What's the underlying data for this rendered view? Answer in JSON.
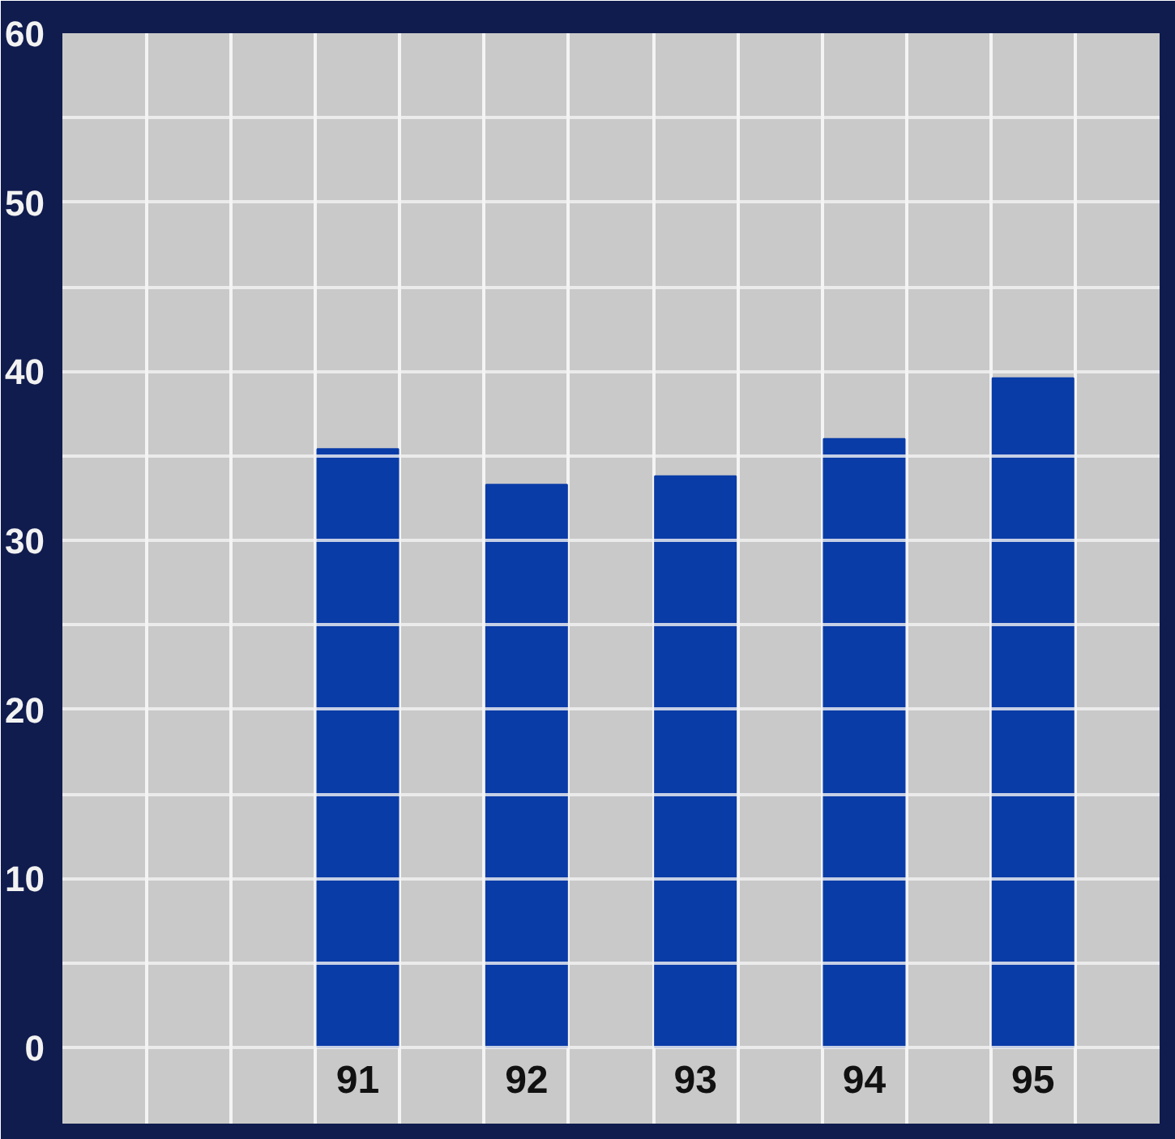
{
  "chart_data": {
    "type": "bar",
    "categories": [
      "91",
      "92",
      "93",
      "94",
      "95"
    ],
    "values": [
      35.4,
      33.3,
      33.8,
      36.0,
      39.6
    ],
    "color": "#0a3ca8",
    "ylim": [
      -4.5,
      60
    ],
    "yticks": [
      0,
      {
        "value": 5,
        "label": null
      },
      10,
      {
        "value": 15,
        "label": null
      },
      20,
      {
        "value": 25,
        "label": null
      },
      30,
      {
        "value": 35,
        "label": null
      },
      40,
      {
        "value": 45,
        "label": null
      },
      50,
      {
        "value": 55,
        "label": null
      },
      60
    ],
    "grid": true
  }
}
